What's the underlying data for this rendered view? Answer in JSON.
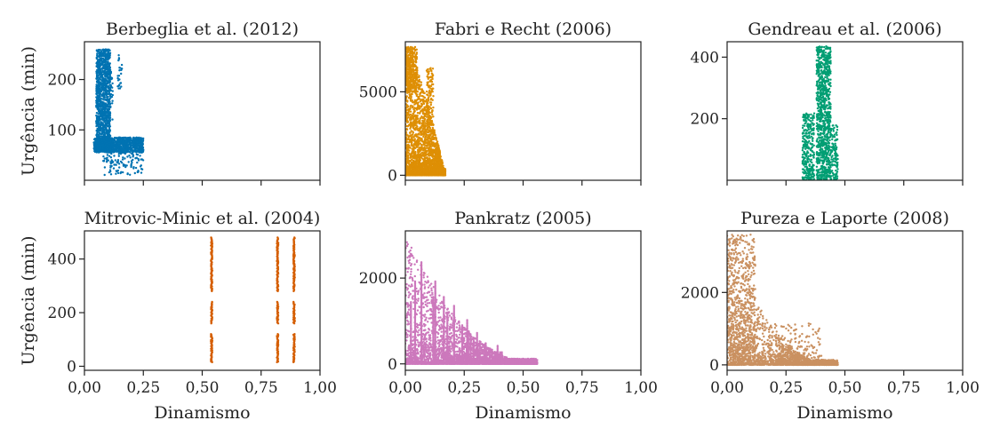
{
  "chart_data": [
    {
      "type": "scatter",
      "title": "Berbeglia et al. (2012)",
      "xlabel": "",
      "ylabel": "Urgência (min)",
      "xlim": [
        0,
        1
      ],
      "ylim": [
        0,
        275
      ],
      "xticks": [
        0,
        0.25,
        0.5,
        0.75,
        1
      ],
      "xtick_labels": [
        "",
        "",
        "",
        "",
        ""
      ],
      "yticks": [
        100,
        200
      ],
      "ytick_labels": [
        "100",
        "200"
      ],
      "color": "#0173b2",
      "x_range": [
        0.04,
        0.25
      ],
      "y_range": [
        10,
        260
      ],
      "clusters": [
        {
          "x": [
            0.04,
            0.11
          ],
          "y": [
            60,
            260
          ],
          "density": "high"
        },
        {
          "x": [
            0.04,
            0.25
          ],
          "y": [
            55,
            85
          ],
          "density": "high"
        },
        {
          "x": [
            0.04,
            0.25
          ],
          "y": [
            10,
            60
          ],
          "density": "low"
        }
      ]
    },
    {
      "type": "scatter",
      "title": "Fabri e Recht (2006)",
      "xlabel": "",
      "ylabel": "",
      "xlim": [
        0,
        1
      ],
      "ylim": [
        -300,
        8000
      ],
      "xticks": [
        0,
        0.25,
        0.5,
        0.75,
        1
      ],
      "xtick_labels": [
        "",
        "",
        "",
        "",
        ""
      ],
      "yticks": [
        0,
        5000
      ],
      "ytick_labels": [
        "0",
        "5000"
      ],
      "color": "#de8f05",
      "x_range": [
        0.0,
        0.17
      ],
      "y_range": [
        0,
        7700
      ],
      "clusters": [
        {
          "x": [
            0.0,
            0.05
          ],
          "y": [
            0,
            7700
          ],
          "density": "high"
        },
        {
          "x": [
            0.05,
            0.17
          ],
          "y": [
            0,
            6800
          ],
          "density": "medium"
        }
      ]
    },
    {
      "type": "scatter",
      "title": "Gendreau et al. (2006)",
      "xlabel": "",
      "ylabel": "",
      "xlim": [
        0,
        1
      ],
      "ylim": [
        0,
        450
      ],
      "xticks": [
        0,
        0.25,
        0.5,
        0.75,
        1
      ],
      "xtick_labels": [
        "",
        "",
        "",
        "",
        ""
      ],
      "yticks": [
        200,
        400
      ],
      "ytick_labels": [
        "200",
        "400"
      ],
      "color": "#029e73",
      "x_range": [
        0.32,
        0.47
      ],
      "y_range": [
        0,
        435
      ],
      "clusters": [
        {
          "x": [
            0.32,
            0.37
          ],
          "y": [
            0,
            220
          ],
          "density": "medium"
        },
        {
          "x": [
            0.38,
            0.44
          ],
          "y": [
            0,
            435
          ],
          "density": "high"
        },
        {
          "x": [
            0.44,
            0.47
          ],
          "y": [
            0,
            180
          ],
          "density": "low"
        }
      ]
    },
    {
      "type": "scatter",
      "title": "Mitrovic-Minic et al. (2004)",
      "xlabel": "Dinamismo",
      "ylabel": "Urgência (min)",
      "xlim": [
        0,
        1
      ],
      "ylim": [
        -15,
        505
      ],
      "xticks": [
        0,
        0.25,
        0.5,
        0.75,
        1
      ],
      "xtick_labels": [
        "0,00",
        "0,25",
        "0,50",
        "0,75",
        "1,00"
      ],
      "yticks": [
        0,
        200,
        400
      ],
      "ytick_labels": [
        "0",
        "200",
        "400"
      ],
      "color": "#d55e00",
      "x_values": [
        0.54,
        0.82,
        0.89
      ],
      "y_segments": [
        [
          15,
          120
        ],
        [
          160,
          240
        ],
        [
          280,
          480
        ]
      ]
    },
    {
      "type": "scatter",
      "title": "Pankratz (2005)",
      "xlabel": "Dinamismo",
      "ylabel": "",
      "xlim": [
        0,
        1
      ],
      "ylim": [
        -150,
        3100
      ],
      "xticks": [
        0,
        0.25,
        0.5,
        0.75,
        1
      ],
      "xtick_labels": [
        "0,00",
        "0,25",
        "0,50",
        "0,75",
        "1,00"
      ],
      "yticks": [
        0,
        2000
      ],
      "ytick_labels": [
        "0",
        "2000"
      ],
      "color": "#cc78bc",
      "x_range": [
        0.0,
        0.56
      ],
      "y_range": [
        0,
        3000
      ]
    },
    {
      "type": "scatter",
      "title": "Pureza e Laporte (2008)",
      "xlabel": "Dinamismo",
      "ylabel": "",
      "xlim": [
        0,
        1
      ],
      "ylim": [
        -150,
        3700
      ],
      "xticks": [
        0,
        0.25,
        0.5,
        0.75,
        1
      ],
      "xtick_labels": [
        "0,00",
        "0,25",
        "0,50",
        "0,75",
        "1,00"
      ],
      "yticks": [
        0,
        2000
      ],
      "ytick_labels": [
        "0",
        "2000"
      ],
      "color": "#ca9161",
      "x_range": [
        0.0,
        0.47
      ],
      "y_range": [
        0,
        3600
      ]
    }
  ]
}
